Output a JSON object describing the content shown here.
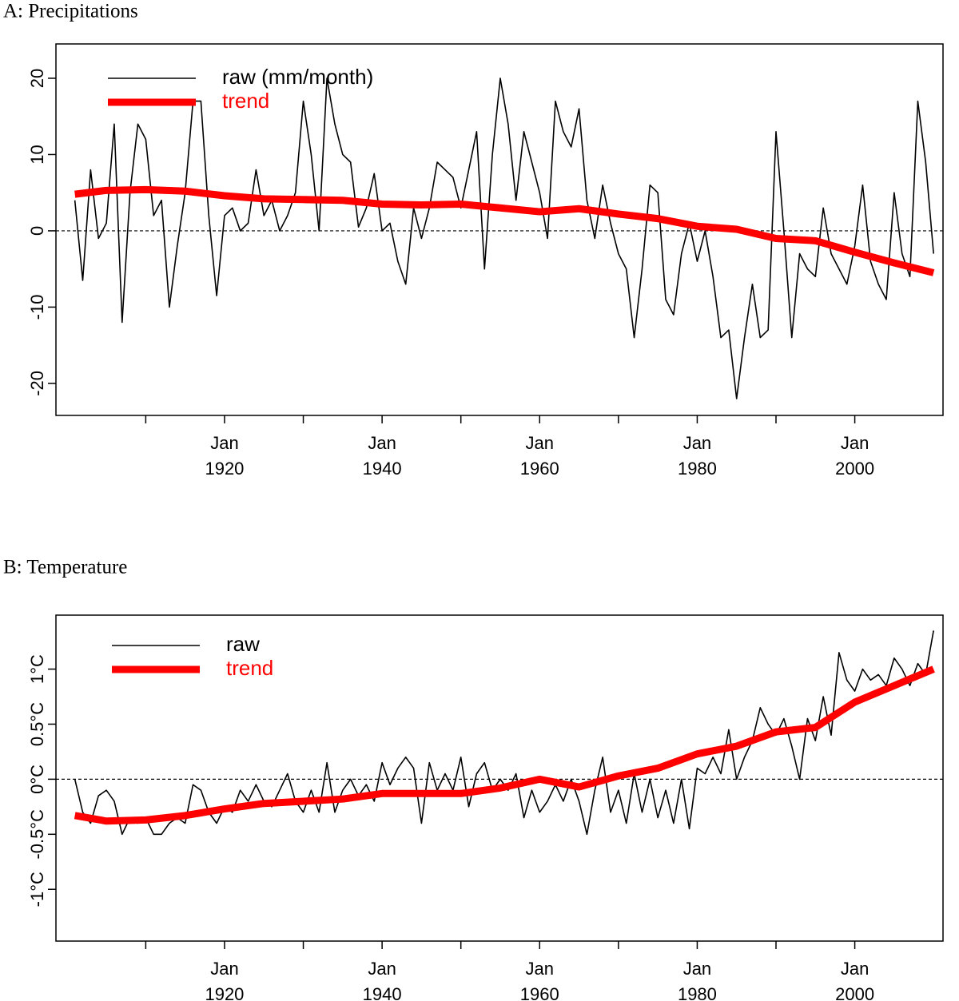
{
  "chart_data": [
    {
      "type": "line",
      "title": "A: Precipitations",
      "x": [
        1901,
        1902,
        1903,
        1904,
        1905,
        1906,
        1907,
        1908,
        1909,
        1910,
        1911,
        1912,
        1913,
        1914,
        1915,
        1916,
        1917,
        1918,
        1919,
        1920,
        1921,
        1922,
        1923,
        1924,
        1925,
        1926,
        1927,
        1928,
        1929,
        1930,
        1931,
        1932,
        1933,
        1934,
        1935,
        1936,
        1937,
        1938,
        1939,
        1940,
        1941,
        1942,
        1943,
        1944,
        1945,
        1946,
        1947,
        1948,
        1949,
        1950,
        1951,
        1952,
        1953,
        1954,
        1955,
        1956,
        1957,
        1958,
        1959,
        1960,
        1961,
        1962,
        1963,
        1964,
        1965,
        1966,
        1967,
        1968,
        1969,
        1970,
        1971,
        1972,
        1973,
        1974,
        1975,
        1976,
        1977,
        1978,
        1979,
        1980,
        1981,
        1982,
        1983,
        1984,
        1985,
        1986,
        1987,
        1988,
        1989,
        1990,
        1991,
        1992,
        1993,
        1994,
        1995,
        1996,
        1997,
        1998,
        1999,
        2000,
        2001,
        2002,
        2003,
        2004,
        2005,
        2006,
        2007,
        2008,
        2009,
        2010
      ],
      "series": [
        {
          "name": "raw (mm/month)",
          "color": "#000000",
          "values": [
            4,
            -6.5,
            8,
            -1,
            1,
            14,
            -12,
            5,
            14,
            12,
            2,
            4,
            -10,
            -2,
            5,
            17,
            17,
            2,
            -8.5,
            2,
            3,
            0,
            1,
            8,
            2,
            4,
            0,
            2,
            5,
            17,
            10,
            0,
            20,
            14,
            10,
            9,
            0.5,
            3,
            7.5,
            0,
            1,
            -4,
            -7,
            3,
            -1,
            3,
            9,
            8,
            7,
            3,
            8,
            13,
            -5,
            10,
            20,
            14,
            4,
            13,
            9,
            5,
            -1,
            17,
            13,
            11,
            16,
            4,
            -1,
            6,
            1,
            -3,
            -5,
            -14,
            -5,
            6,
            5,
            -9,
            -11,
            -3,
            1,
            -4,
            0,
            -6,
            -14,
            -13,
            -22,
            -14,
            -7,
            -14,
            -13,
            13,
            0,
            -14,
            -3,
            -5,
            -6,
            3,
            -3,
            -5,
            -7,
            -2,
            6,
            -4,
            -7,
            -9,
            5,
            -3,
            -6,
            17,
            9,
            -3
          ]
        },
        {
          "name": "trend",
          "color": "#ff0000",
          "x": [
            1901,
            1905,
            1910,
            1915,
            1920,
            1925,
            1930,
            1935,
            1940,
            1945,
            1950,
            1955,
            1960,
            1965,
            1970,
            1975,
            1980,
            1985,
            1990,
            1995,
            2000,
            2005,
            2010
          ],
          "values": [
            4.8,
            5.3,
            5.4,
            5.2,
            4.6,
            4.2,
            4.1,
            4.0,
            3.5,
            3.4,
            3.5,
            3.0,
            2.5,
            2.9,
            2.2,
            1.6,
            0.6,
            0.2,
            -1.0,
            -1.3,
            -2.8,
            -4.2,
            -5.5
          ]
        }
      ],
      "xlim": [
        1898.6,
        2011.2
      ],
      "xticks": [
        {
          "value": 1920,
          "label": "Jan 1920"
        },
        {
          "value": 1940,
          "label": "Jan 1940"
        },
        {
          "value": 1960,
          "label": "Jan 1960"
        },
        {
          "value": 1980,
          "label": "Jan 1980"
        },
        {
          "value": 2000,
          "label": "Jan 2000"
        }
      ],
      "xminor": [
        1910,
        1930,
        1950,
        1970,
        1990
      ],
      "ylim": [
        -24.2,
        24.5
      ],
      "yticks": [
        -20,
        -10,
        0,
        10,
        20
      ],
      "hline": 0,
      "legend": "top-left"
    },
    {
      "type": "line",
      "title": "B: Temperature",
      "x": [
        1901,
        1902,
        1903,
        1904,
        1905,
        1906,
        1907,
        1908,
        1909,
        1910,
        1911,
        1912,
        1913,
        1914,
        1915,
        1916,
        1917,
        1918,
        1919,
        1920,
        1921,
        1922,
        1923,
        1924,
        1925,
        1926,
        1927,
        1928,
        1929,
        1930,
        1931,
        1932,
        1933,
        1934,
        1935,
        1936,
        1937,
        1938,
        1939,
        1940,
        1941,
        1942,
        1943,
        1944,
        1945,
        1946,
        1947,
        1948,
        1949,
        1950,
        1951,
        1952,
        1953,
        1954,
        1955,
        1956,
        1957,
        1958,
        1959,
        1960,
        1961,
        1962,
        1963,
        1964,
        1965,
        1966,
        1967,
        1968,
        1969,
        1970,
        1971,
        1972,
        1973,
        1974,
        1975,
        1976,
        1977,
        1978,
        1979,
        1980,
        1981,
        1982,
        1983,
        1984,
        1985,
        1986,
        1987,
        1988,
        1989,
        1990,
        1991,
        1992,
        1993,
        1994,
        1995,
        1996,
        1997,
        1998,
        1999,
        2000,
        2001,
        2002,
        2003,
        2004,
        2005,
        2006,
        2007,
        2008,
        2009,
        2010
      ],
      "series": [
        {
          "name": "raw",
          "color": "#000000",
          "values": [
            0,
            -0.3,
            -0.4,
            -0.15,
            -0.1,
            -0.2,
            -0.5,
            -0.35,
            -0.4,
            -0.35,
            -0.5,
            -0.5,
            -0.4,
            -0.35,
            -0.4,
            -0.05,
            -0.1,
            -0.3,
            -0.4,
            -0.25,
            -0.3,
            -0.1,
            -0.2,
            -0.05,
            -0.2,
            -0.25,
            -0.1,
            0.05,
            -0.2,
            -0.3,
            -0.1,
            -0.3,
            0.15,
            -0.3,
            -0.1,
            0,
            -0.15,
            -0.05,
            -0.2,
            0.15,
            -0.05,
            0.1,
            0.2,
            0.1,
            -0.4,
            0.15,
            -0.1,
            0.05,
            -0.1,
            0.2,
            -0.25,
            0.05,
            0.15,
            -0.1,
            0,
            -0.1,
            0.05,
            -0.35,
            -0.1,
            -0.3,
            -0.2,
            -0.05,
            -0.2,
            0,
            -0.2,
            -0.5,
            -0.1,
            0.2,
            -0.3,
            -0.1,
            -0.4,
            0.05,
            -0.3,
            0,
            -0.35,
            -0.1,
            -0.4,
            0,
            -0.45,
            0.1,
            0.05,
            0.2,
            0.05,
            0.45,
            0,
            0.2,
            0.35,
            0.65,
            0.5,
            0.4,
            0.55,
            0.3,
            0,
            0.55,
            0.35,
            0.75,
            0.4,
            1.15,
            0.9,
            0.8,
            1,
            0.9,
            0.95,
            0.85,
            1.1,
            1,
            0.85,
            1.05,
            0.95,
            1.35
          ]
        },
        {
          "name": "trend",
          "color": "#ff0000",
          "x": [
            1901,
            1905,
            1910,
            1915,
            1920,
            1925,
            1930,
            1935,
            1940,
            1945,
            1950,
            1955,
            1960,
            1965,
            1970,
            1975,
            1980,
            1985,
            1990,
            1995,
            2000,
            2005,
            2010
          ],
          "values": [
            -0.33,
            -0.38,
            -0.37,
            -0.33,
            -0.27,
            -0.22,
            -0.2,
            -0.18,
            -0.13,
            -0.13,
            -0.13,
            -0.08,
            0.0,
            -0.07,
            0.03,
            0.1,
            0.23,
            0.3,
            0.43,
            0.47,
            0.7,
            0.85,
            1.0
          ]
        }
      ],
      "xlim": [
        1898.6,
        2011.2
      ],
      "xticks": [
        {
          "value": 1920,
          "label": "Jan 1920"
        },
        {
          "value": 1940,
          "label": "Jan 1940"
        },
        {
          "value": 1960,
          "label": "Jan 1960"
        },
        {
          "value": 1980,
          "label": "Jan 1980"
        },
        {
          "value": 2000,
          "label": "Jan 2000"
        }
      ],
      "xminor": [
        1910,
        1930,
        1950,
        1970,
        1990
      ],
      "ylim": [
        -1.47,
        1.49
      ],
      "yticks": [
        {
          "value": -1,
          "label": "-1°C"
        },
        {
          "value": -0.5,
          "label": "-0.5°C"
        },
        {
          "value": 0,
          "label": "0°C"
        },
        {
          "value": 0.5,
          "label": "0.5°C"
        },
        {
          "value": 1,
          "label": "1°C"
        }
      ],
      "hline": 0,
      "legend": "top-left"
    }
  ]
}
